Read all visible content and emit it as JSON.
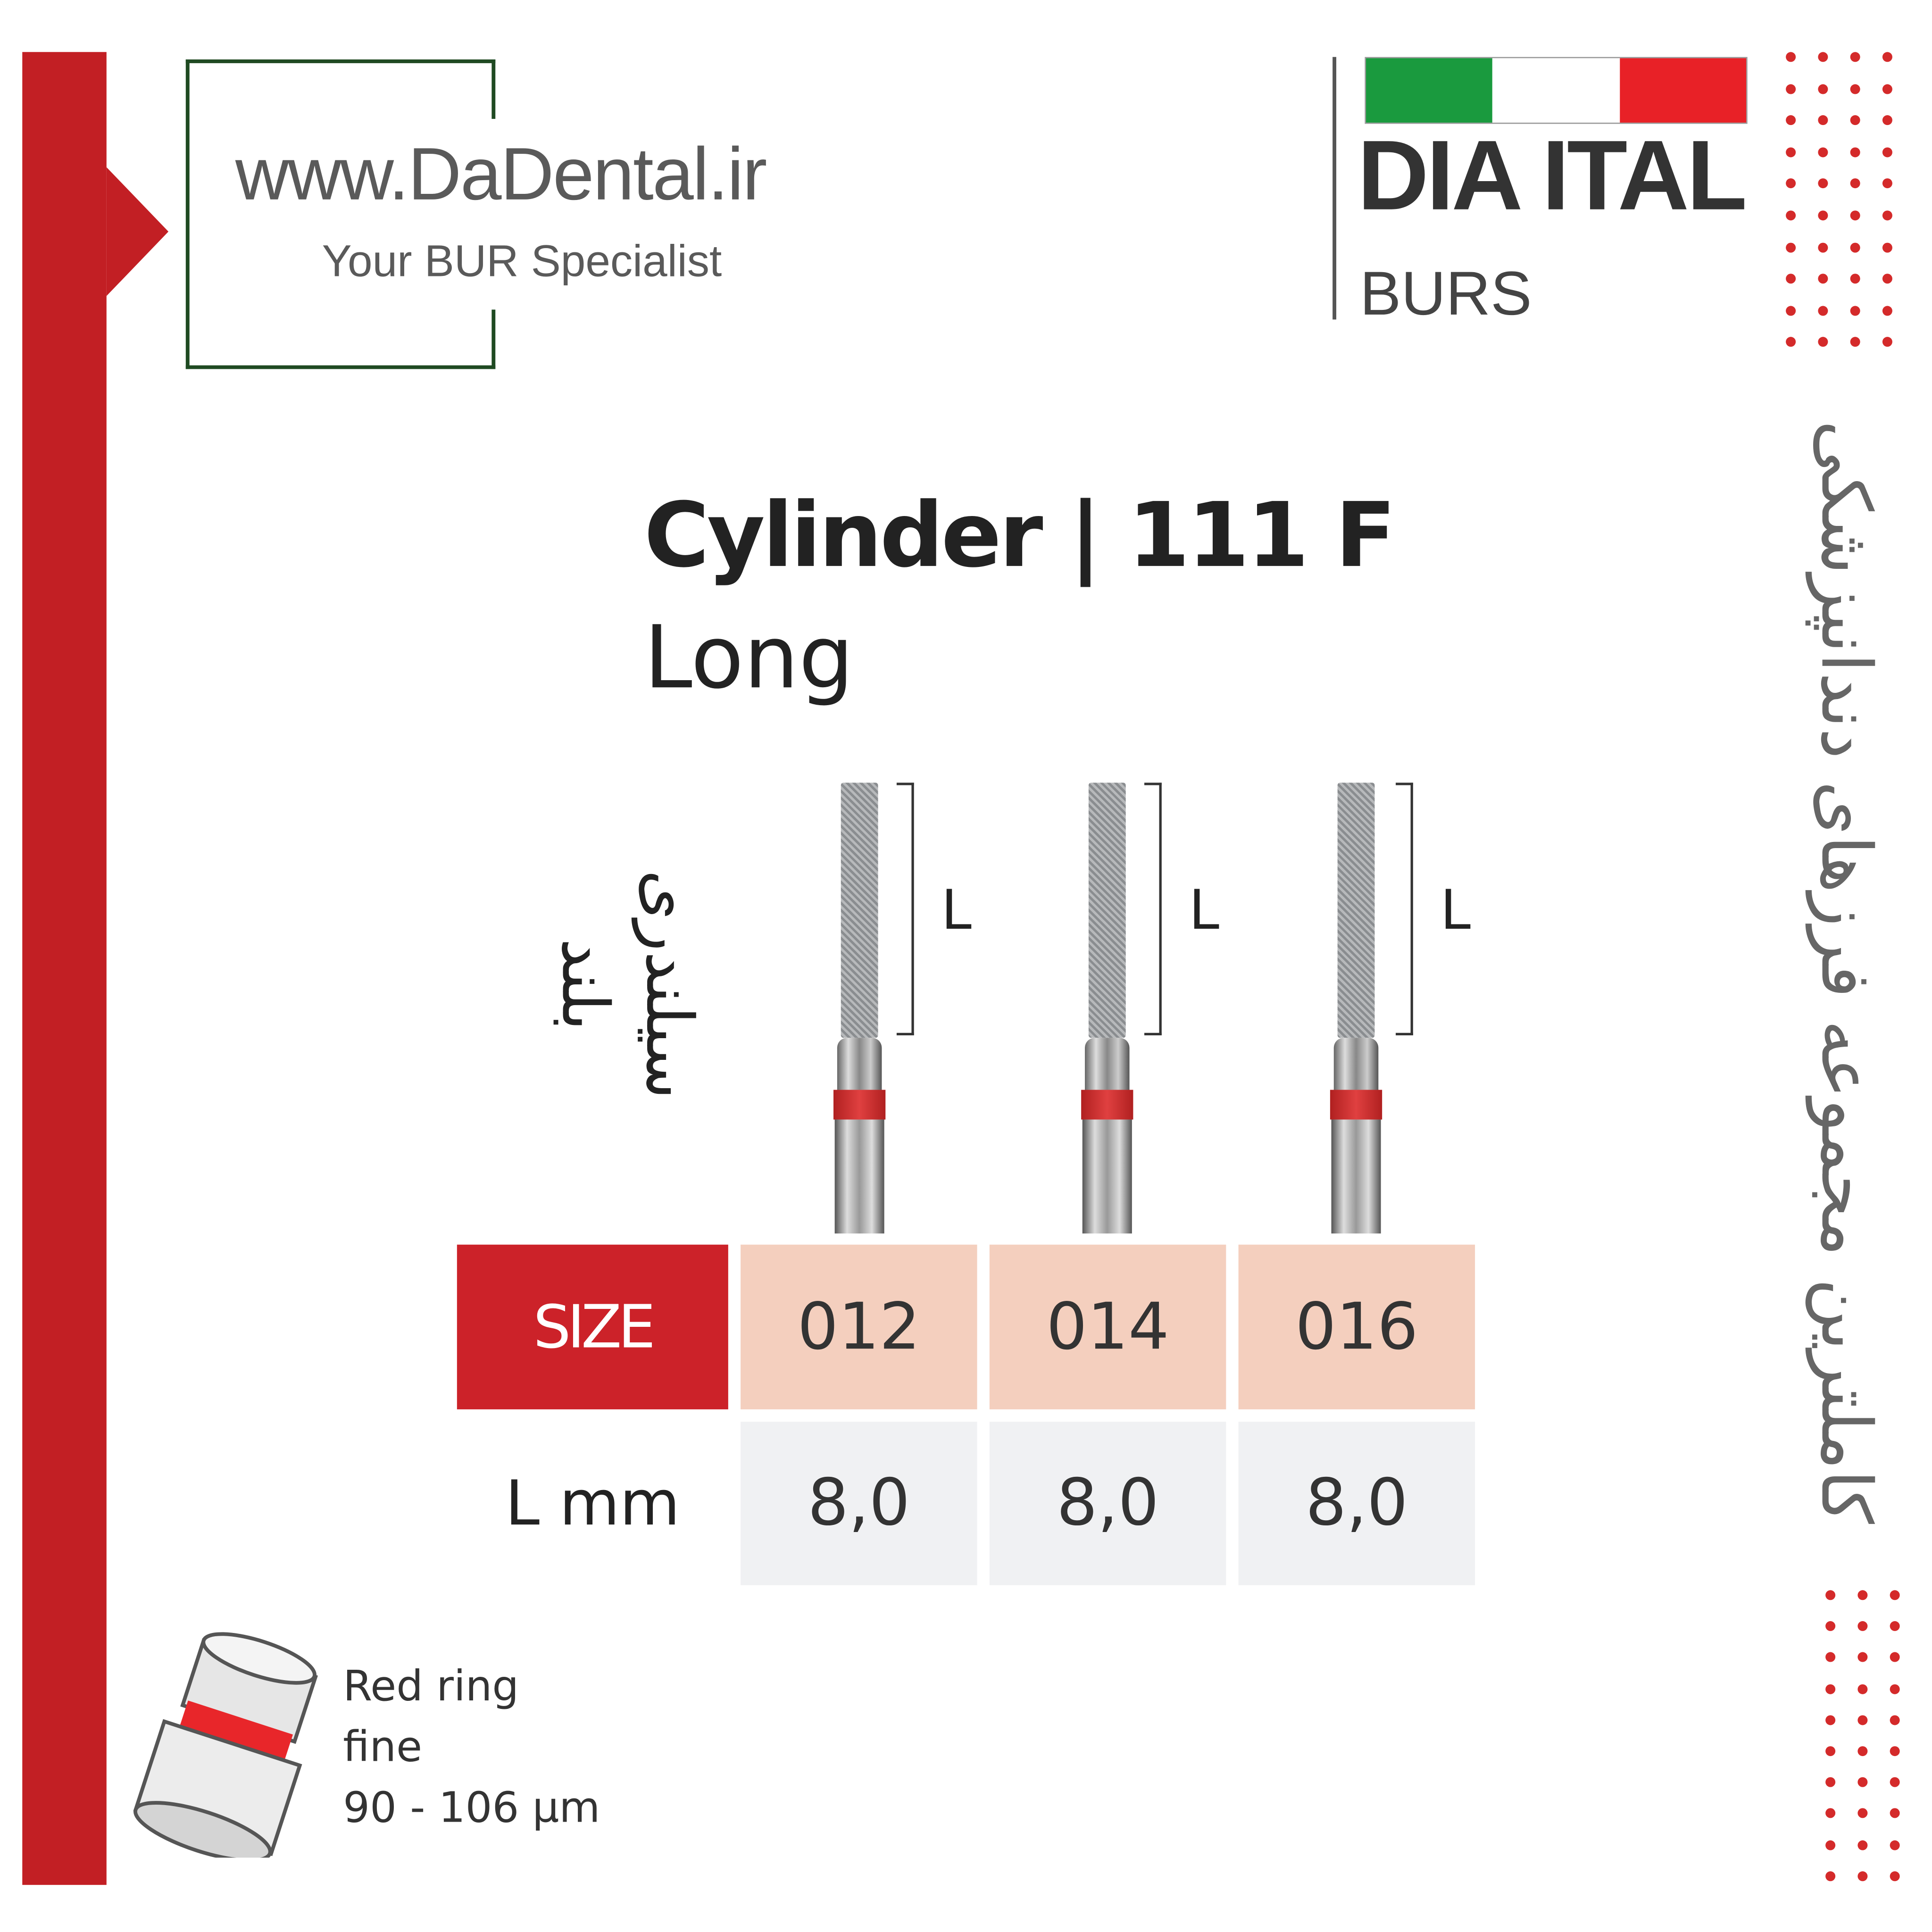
{
  "header": {
    "website": "www.DaDental.ir",
    "tagline": "Your BUR Specialist",
    "brand": "DIA ITAL",
    "brand_sub": "BURS",
    "flag_colors": [
      "#1a9a3e",
      "#ffffff",
      "#e82127"
    ]
  },
  "side_text_fa": "کاملترین مجموعه فرزهای دندانپزشکی",
  "product": {
    "title": "Cylinder | 111 F",
    "subtitle": "Long",
    "name_fa_line1": "سیلندری",
    "name_fa_line2": "بلند",
    "length_marker": "L"
  },
  "table": {
    "size_label": "SIZE",
    "length_label": "L mm",
    "sizes": [
      "012",
      "014",
      "016"
    ],
    "lengths": [
      "8,0",
      "8,0",
      "8,0"
    ]
  },
  "grit": {
    "ring": "Red ring",
    "grade": "fine",
    "range": "90 - 106 µm",
    "ring_color": "#e8262a"
  },
  "colors": {
    "accent": "#c21f24",
    "frame": "#1f4a22",
    "size_cell": "#f4cfbe"
  }
}
